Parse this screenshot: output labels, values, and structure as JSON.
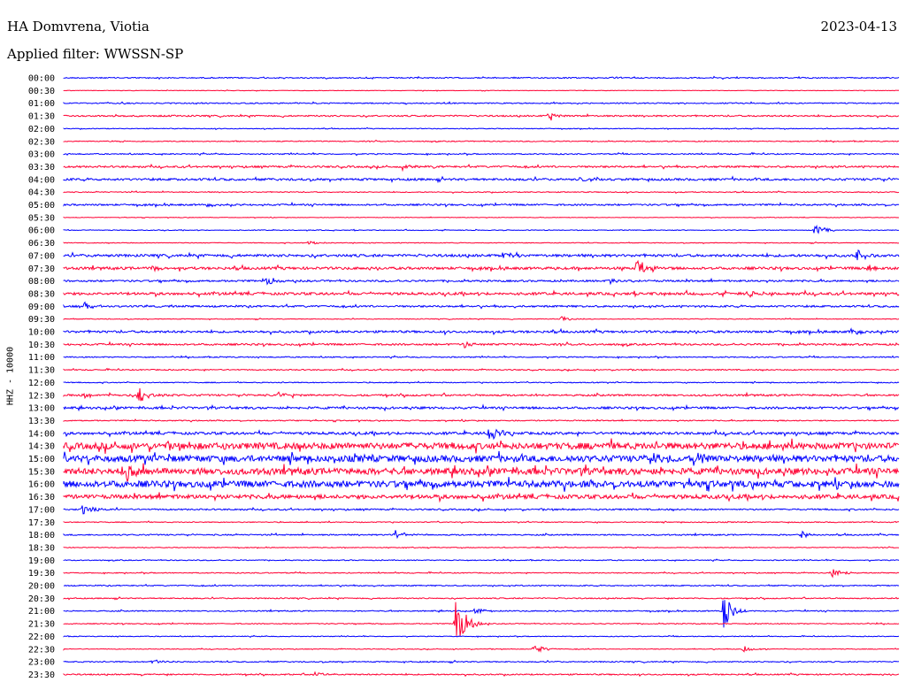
{
  "header": {
    "station": "HA Domvrena, Viotia",
    "date": "2023-04-13",
    "filter": "Applied filter: WWSSN-SP",
    "channel": "HHZ - 10000"
  },
  "colors": {
    "even_trace": "#0000ff",
    "odd_trace": "#ff0033",
    "text": "#000000"
  },
  "chart_data": {
    "type": "line",
    "subtype": "helicorder",
    "title": "HA Domvrena, Viotia",
    "ylabel": "HHZ - 10000",
    "row_labels": [
      "00:00",
      "00:30",
      "01:00",
      "01:30",
      "02:00",
      "02:30",
      "03:00",
      "03:30",
      "04:00",
      "04:30",
      "05:00",
      "05:30",
      "06:00",
      "06:30",
      "07:00",
      "07:30",
      "08:00",
      "08:30",
      "09:00",
      "09:30",
      "10:00",
      "10:30",
      "11:00",
      "11:30",
      "12:00",
      "12:30",
      "13:00",
      "13:30",
      "14:00",
      "14:30",
      "15:00",
      "15:30",
      "16:00",
      "16:30",
      "17:00",
      "17:30",
      "18:00",
      "18:30",
      "19:00",
      "19:30",
      "20:00",
      "20:30",
      "21:00",
      "21:30",
      "22:00",
      "22:30",
      "23:00",
      "23:30"
    ],
    "row_noise_level": [
      0.6,
      0.3,
      0.6,
      0.8,
      0.4,
      0.5,
      0.6,
      1.0,
      1.2,
      0.5,
      0.9,
      0.3,
      0.4,
      0.4,
      1.4,
      1.4,
      1.0,
      1.4,
      1.0,
      0.4,
      1.2,
      1.0,
      0.6,
      0.6,
      0.5,
      1.0,
      1.2,
      0.6,
      1.4,
      3.5,
      3.5,
      3.5,
      3.5,
      2.2,
      0.8,
      0.5,
      0.7,
      0.4,
      0.5,
      0.5,
      0.6,
      0.6,
      0.6,
      0.5,
      0.4,
      0.4,
      0.6,
      0.7
    ],
    "events": [
      {
        "row": "01:30",
        "minute": 17.4,
        "amplitude": 5
      },
      {
        "row": "04:00",
        "minute": 18.5,
        "amplitude": 5
      },
      {
        "row": "03:30",
        "minute": 12.2,
        "amplitude": 4
      },
      {
        "row": "05:00",
        "minute": 5.2,
        "amplitude": 3
      },
      {
        "row": "06:00",
        "minute": 27.0,
        "amplitude": 7
      },
      {
        "row": "06:30",
        "minute": 8.8,
        "amplitude": 3
      },
      {
        "row": "07:00",
        "minute": 15.8,
        "amplitude": 4
      },
      {
        "row": "07:00",
        "minute": 28.5,
        "amplitude": 7
      },
      {
        "row": "07:30",
        "minute": 3.2,
        "amplitude": 4
      },
      {
        "row": "07:30",
        "minute": 20.6,
        "amplitude": 9
      },
      {
        "row": "07:30",
        "minute": 28.9,
        "amplitude": 4
      },
      {
        "row": "08:00",
        "minute": 7.3,
        "amplitude": 6
      },
      {
        "row": "08:00",
        "minute": 19.6,
        "amplitude": 4
      },
      {
        "row": "08:30",
        "minute": 24.6,
        "amplitude": 4
      },
      {
        "row": "09:00",
        "minute": 0.7,
        "amplitude": 6
      },
      {
        "row": "09:30",
        "minute": 17.9,
        "amplitude": 4
      },
      {
        "row": "10:00",
        "minute": 28.3,
        "amplitude": 4
      },
      {
        "row": "10:30",
        "minute": 14.4,
        "amplitude": 4
      },
      {
        "row": "12:30",
        "minute": 0.6,
        "amplitude": 5
      },
      {
        "row": "12:30",
        "minute": 2.7,
        "amplitude": 10
      },
      {
        "row": "12:30",
        "minute": 7.7,
        "amplitude": 4
      },
      {
        "row": "14:00",
        "minute": 15.3,
        "amplitude": 11
      },
      {
        "row": "15:00",
        "minute": 21.2,
        "amplitude": 7
      },
      {
        "row": "15:00",
        "minute": 22.8,
        "amplitude": 8
      },
      {
        "row": "15:30",
        "minute": 2.2,
        "amplitude": 13
      },
      {
        "row": "17:00",
        "minute": 0.7,
        "amplitude": 6
      },
      {
        "row": "18:00",
        "minute": 11.9,
        "amplitude": 6
      },
      {
        "row": "18:00",
        "minute": 26.5,
        "amplitude": 4
      },
      {
        "row": "19:30",
        "minute": 27.6,
        "amplitude": 6
      },
      {
        "row": "21:30",
        "minute": 14.1,
        "amplitude": 35
      },
      {
        "row": "21:00",
        "minute": 14.8,
        "amplitude": 4
      },
      {
        "row": "21:00",
        "minute": 23.7,
        "amplitude": 20
      },
      {
        "row": "22:30",
        "minute": 16.9,
        "amplitude": 6
      },
      {
        "row": "22:30",
        "minute": 24.4,
        "amplitude": 4
      },
      {
        "row": "23:00",
        "minute": 3.2,
        "amplitude": 4
      },
      {
        "row": "23:30",
        "minute": 9.0,
        "amplitude": 3
      }
    ],
    "xlim_minutes": [
      0,
      30
    ],
    "grid": false
  }
}
